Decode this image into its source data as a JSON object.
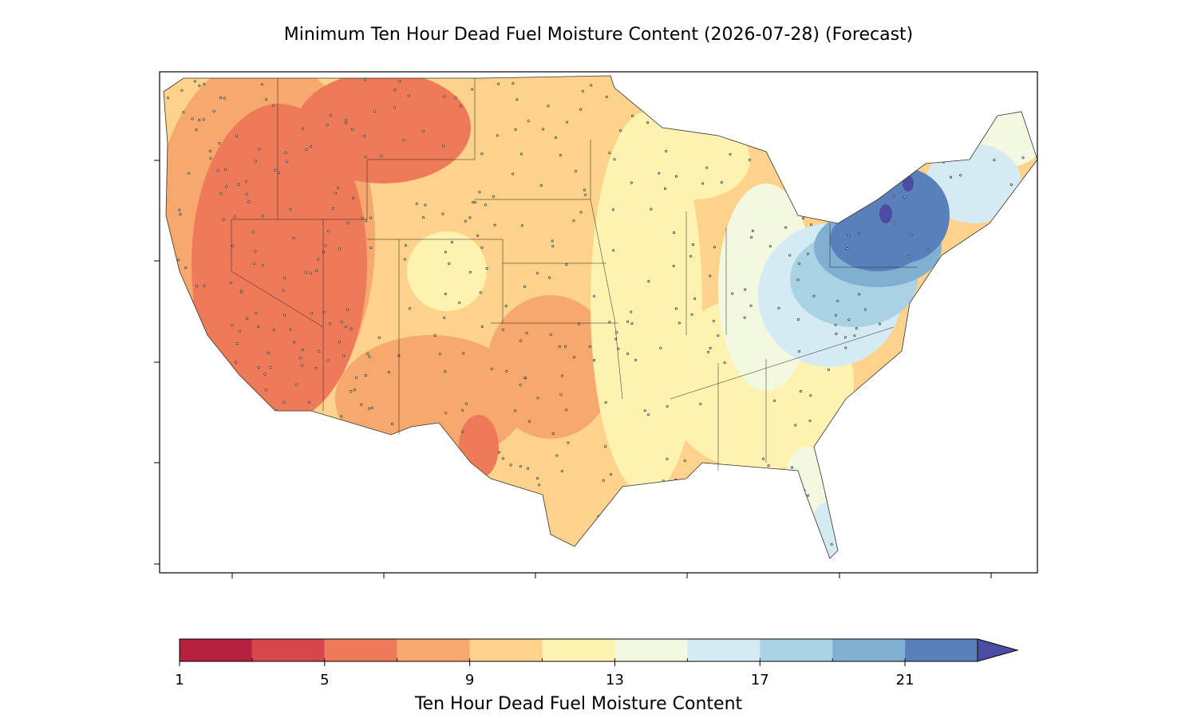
{
  "title": "Minimum Ten Hour Dead Fuel Moisture Content (2026-07-28) (Forecast)",
  "colorbar": {
    "label": "Ten Hour Dead Fuel Moisture Content",
    "boundaries": [
      1,
      3,
      5,
      7,
      9,
      11,
      13,
      15,
      17,
      19,
      21,
      23
    ],
    "colors": [
      "#b5213f",
      "#d6464a",
      "#ee7a59",
      "#f7a86c",
      "#fdd28a",
      "#fef2b1",
      "#f3f9e0",
      "#d4ebf3",
      "#a9d2e5",
      "#80afd2",
      "#5a80bb"
    ],
    "extend_color": "#4c4ca4",
    "ticks": [
      1,
      5,
      9,
      13,
      17,
      21
    ]
  }
}
